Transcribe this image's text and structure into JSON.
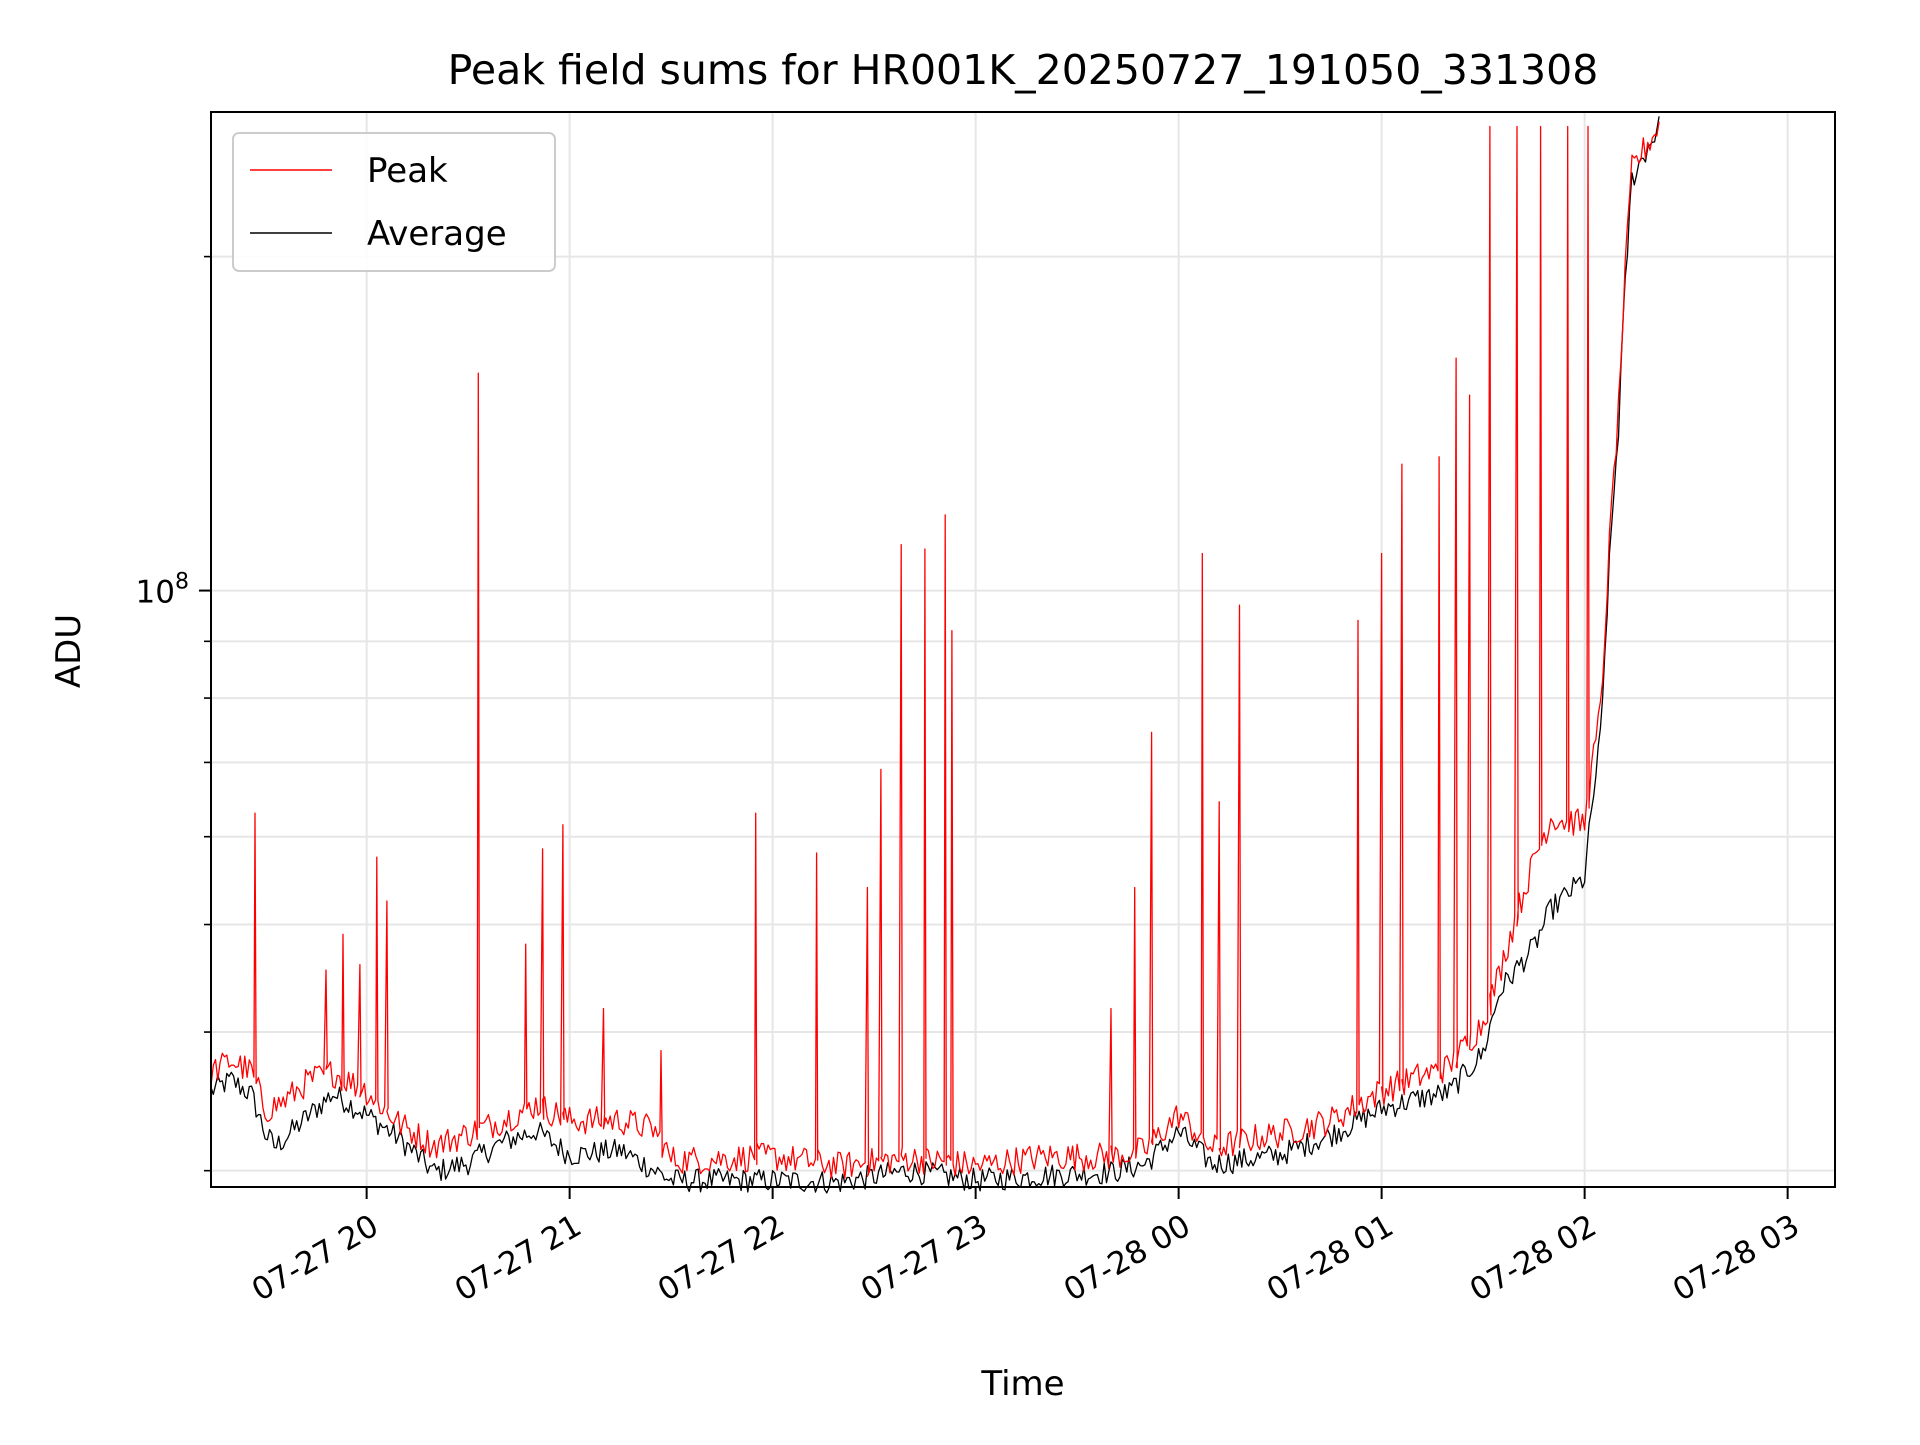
{
  "chart_data": {
    "type": "line",
    "title": "Peak field sums for HR001K_20250727_191050_331308",
    "xlabel": "Time",
    "ylabel": "ADU",
    "y_scale": "log",
    "grid": true,
    "legend_position": "top-left",
    "x_range": [
      "2025-07-27 19:14",
      "2025-07-28 03:14"
    ],
    "ylim": [
      29000000,
      270000000
    ],
    "x_ticks": [
      {
        "t": "2025-07-27 20:00",
        "label": "07-27 20"
      },
      {
        "t": "2025-07-27 21:00",
        "label": "07-27 21"
      },
      {
        "t": "2025-07-27 22:00",
        "label": "07-27 22"
      },
      {
        "t": "2025-07-27 23:00",
        "label": "07-27 23"
      },
      {
        "t": "2025-07-28 00:00",
        "label": "07-28 00"
      },
      {
        "t": "2025-07-28 01:00",
        "label": "07-28 01"
      },
      {
        "t": "2025-07-28 02:00",
        "label": "07-28 02"
      },
      {
        "t": "2025-07-28 03:00",
        "label": "07-28 03"
      }
    ],
    "y_major_tick": {
      "value": 100000000,
      "label_base": "10",
      "label_exp": "8"
    },
    "y_minor_ticks": [
      30000000,
      40000000,
      50000000,
      60000000,
      70000000,
      80000000,
      90000000,
      200000000
    ],
    "series": [
      {
        "name": "Peak",
        "color": "#ff0000",
        "baseline": [
          [
            "2025-07-27 19:14",
            36.8
          ],
          [
            "2025-07-27 19:20",
            37.7
          ],
          [
            "2025-07-27 19:26",
            36.8
          ],
          [
            "2025-07-27 19:30",
            34.0
          ],
          [
            "2025-07-27 19:36",
            34.7
          ],
          [
            "2025-07-27 19:43",
            36.2
          ],
          [
            "2025-07-27 19:50",
            36.8
          ],
          [
            "2025-07-27 20:00",
            35.4
          ],
          [
            "2025-07-27 20:10",
            33.0
          ],
          [
            "2025-07-27 20:20",
            31.6
          ],
          [
            "2025-07-27 20:30",
            32.4
          ],
          [
            "2025-07-27 20:40",
            33.3
          ],
          [
            "2025-07-27 20:50",
            34.4
          ],
          [
            "2025-07-27 21:00",
            33.3
          ],
          [
            "2025-07-27 21:15",
            33.3
          ],
          [
            "2025-07-27 21:25",
            32.7
          ],
          [
            "2025-07-27 21:30",
            30.7
          ],
          [
            "2025-07-27 21:40",
            30.7
          ],
          [
            "2025-07-27 22:00",
            30.9
          ],
          [
            "2025-07-27 22:20",
            30.3
          ],
          [
            "2025-07-27 22:40",
            30.8
          ],
          [
            "2025-07-27 23:00",
            30.3
          ],
          [
            "2025-07-27 23:20",
            30.9
          ],
          [
            "2025-07-27 23:40",
            30.9
          ],
          [
            "2025-07-27 23:50",
            31.3
          ],
          [
            "2025-07-28 00:00",
            33.7
          ],
          [
            "2025-07-28 00:10",
            31.4
          ],
          [
            "2025-07-28 00:20",
            32.0
          ],
          [
            "2025-07-28 00:30",
            32.4
          ],
          [
            "2025-07-28 00:45",
            33.3
          ],
          [
            "2025-07-28 01:00",
            35.4
          ],
          [
            "2025-07-28 01:10",
            36.4
          ],
          [
            "2025-07-28 01:20",
            37.2
          ],
          [
            "2025-07-28 01:30",
            40.8
          ],
          [
            "2025-07-28 01:35",
            45.4
          ],
          [
            "2025-07-28 01:45",
            57.0
          ],
          [
            "2025-07-28 01:50",
            62.4
          ],
          [
            "2025-07-28 02:00",
            61.6
          ],
          [
            "2025-07-28 02:05",
            79.0
          ],
          [
            "2025-07-28 02:10",
            145.0
          ],
          [
            "2025-07-28 02:14",
            240.0
          ],
          [
            "2025-07-28 02:22",
            262.0
          ]
        ],
        "spikes": [
          [
            "2025-07-27 19:27",
            63.0
          ],
          [
            "2025-07-27 19:48",
            45.5
          ],
          [
            "2025-07-27 19:53",
            49.0
          ],
          [
            "2025-07-27 19:58",
            46.0
          ],
          [
            "2025-07-27 20:03",
            57.5
          ],
          [
            "2025-07-27 20:06",
            52.5
          ],
          [
            "2025-07-27 20:33",
            157.0
          ],
          [
            "2025-07-27 20:47",
            48.0
          ],
          [
            "2025-07-27 20:52",
            58.5
          ],
          [
            "2025-07-27 20:58",
            61.5
          ],
          [
            "2025-07-27 21:10",
            42.0
          ],
          [
            "2025-07-27 21:27",
            38.5
          ],
          [
            "2025-07-27 21:55",
            63.0
          ],
          [
            "2025-07-27 22:13",
            58.0
          ],
          [
            "2025-07-27 22:28",
            54.0
          ],
          [
            "2025-07-27 22:32",
            69.0
          ],
          [
            "2025-07-27 22:38",
            110.0
          ],
          [
            "2025-07-27 22:45",
            109.0
          ],
          [
            "2025-07-27 22:51",
            117.0
          ],
          [
            "2025-07-27 22:53",
            92.0
          ],
          [
            "2025-07-27 23:40",
            42.0
          ],
          [
            "2025-07-27 23:47",
            54.0
          ],
          [
            "2025-07-27 23:52",
            74.5
          ],
          [
            "2025-07-28 00:07",
            108.0
          ],
          [
            "2025-07-28 00:12",
            64.5
          ],
          [
            "2025-07-28 00:18",
            97.0
          ],
          [
            "2025-07-28 00:53",
            94.0
          ],
          [
            "2025-07-28 01:00",
            108.0
          ],
          [
            "2025-07-28 01:06",
            130.0
          ],
          [
            "2025-07-28 01:17",
            132.0
          ],
          [
            "2025-07-28 01:22",
            162.0
          ],
          [
            "2025-07-28 01:26",
            150.0
          ],
          [
            "2025-07-28 01:32",
            262.0
          ],
          [
            "2025-07-28 01:40",
            262.0
          ],
          [
            "2025-07-28 01:47",
            262.0
          ],
          [
            "2025-07-28 01:55",
            262.0
          ],
          [
            "2025-07-28 02:01",
            262.0
          ]
        ]
      },
      {
        "name": "Average",
        "color": "#000000",
        "baseline": [
          [
            "2025-07-27 19:14",
            35.4
          ],
          [
            "2025-07-27 19:20",
            36.2
          ],
          [
            "2025-07-27 19:26",
            35.1
          ],
          [
            "2025-07-27 19:30",
            32.4
          ],
          [
            "2025-07-27 19:33",
            31.5
          ],
          [
            "2025-07-27 19:40",
            33.0
          ],
          [
            "2025-07-27 19:50",
            35.2
          ],
          [
            "2025-07-27 20:00",
            33.7
          ],
          [
            "2025-07-27 20:10",
            32.0
          ],
          [
            "2025-07-27 20:20",
            29.9
          ],
          [
            "2025-07-27 20:30",
            30.5
          ],
          [
            "2025-07-27 20:40",
            31.8
          ],
          [
            "2025-07-27 20:50",
            32.6
          ],
          [
            "2025-07-27 21:00",
            31.0
          ],
          [
            "2025-07-27 21:15",
            31.3
          ],
          [
            "2025-07-27 21:30",
            29.4
          ],
          [
            "2025-07-27 22:00",
            29.4
          ],
          [
            "2025-07-27 22:20",
            29.3
          ],
          [
            "2025-07-27 22:40",
            30.0
          ],
          [
            "2025-07-27 23:00",
            29.4
          ],
          [
            "2025-07-27 23:20",
            29.7
          ],
          [
            "2025-07-27 23:40",
            29.9
          ],
          [
            "2025-07-27 23:50",
            30.4
          ],
          [
            "2025-07-28 00:00",
            32.5
          ],
          [
            "2025-07-28 00:10",
            30.4
          ],
          [
            "2025-07-28 00:20",
            30.7
          ],
          [
            "2025-07-28 00:30",
            31.0
          ],
          [
            "2025-07-28 00:45",
            32.3
          ],
          [
            "2025-07-28 01:00",
            34.1
          ],
          [
            "2025-07-28 01:10",
            34.8
          ],
          [
            "2025-07-28 01:20",
            35.3
          ],
          [
            "2025-07-28 01:30",
            38.3
          ],
          [
            "2025-07-28 01:35",
            43.6
          ],
          [
            "2025-07-28 01:45",
            47.7
          ],
          [
            "2025-07-28 01:50",
            51.6
          ],
          [
            "2025-07-28 02:00",
            55.0
          ],
          [
            "2025-07-28 02:05",
            75.0
          ],
          [
            "2025-07-28 02:10",
            140.0
          ],
          [
            "2025-07-28 02:14",
            235.0
          ],
          [
            "2025-07-28 02:22",
            262.0
          ]
        ]
      }
    ]
  }
}
